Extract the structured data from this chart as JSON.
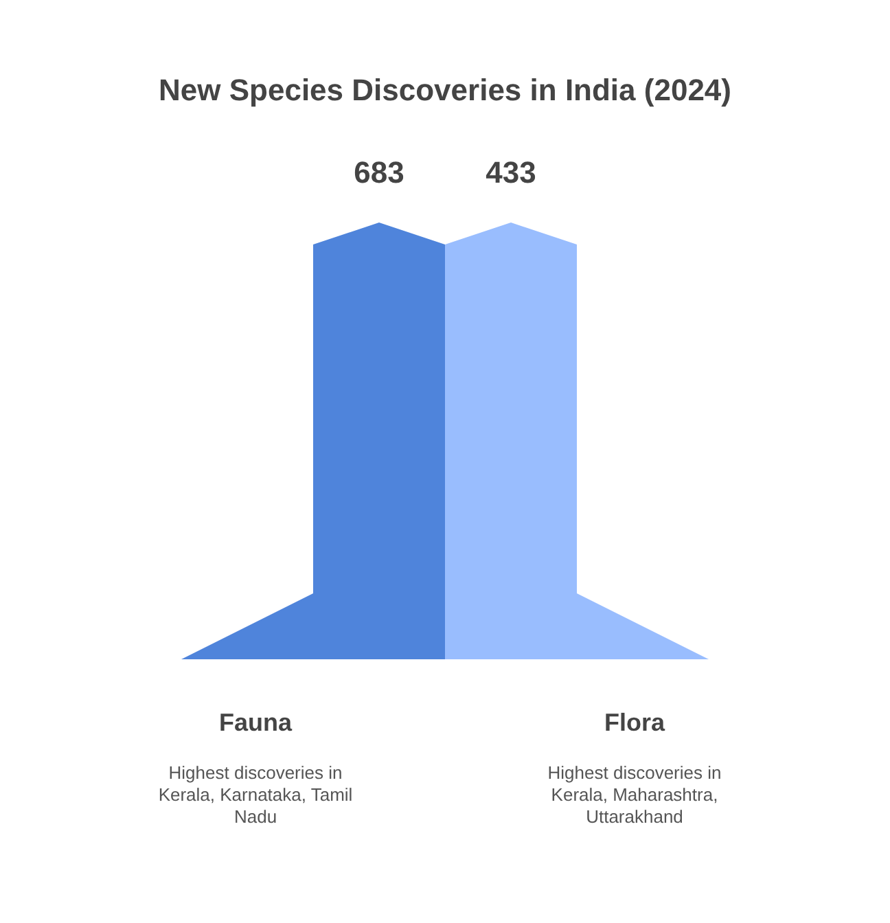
{
  "chart_data": {
    "type": "other",
    "title": "New Species Discoveries in India (2024)",
    "categories": [
      "Fauna",
      "Flora"
    ],
    "values": [
      683,
      433
    ],
    "colors": [
      "#4f84db",
      "#99bdfe"
    ],
    "data_labels": true,
    "annotations": [
      "Highest discoveries in Kerala, Karnataka, Tamil Nadu",
      "Highest discoveries in Kerala, Maharashtra, Uttarakhand"
    ]
  }
}
